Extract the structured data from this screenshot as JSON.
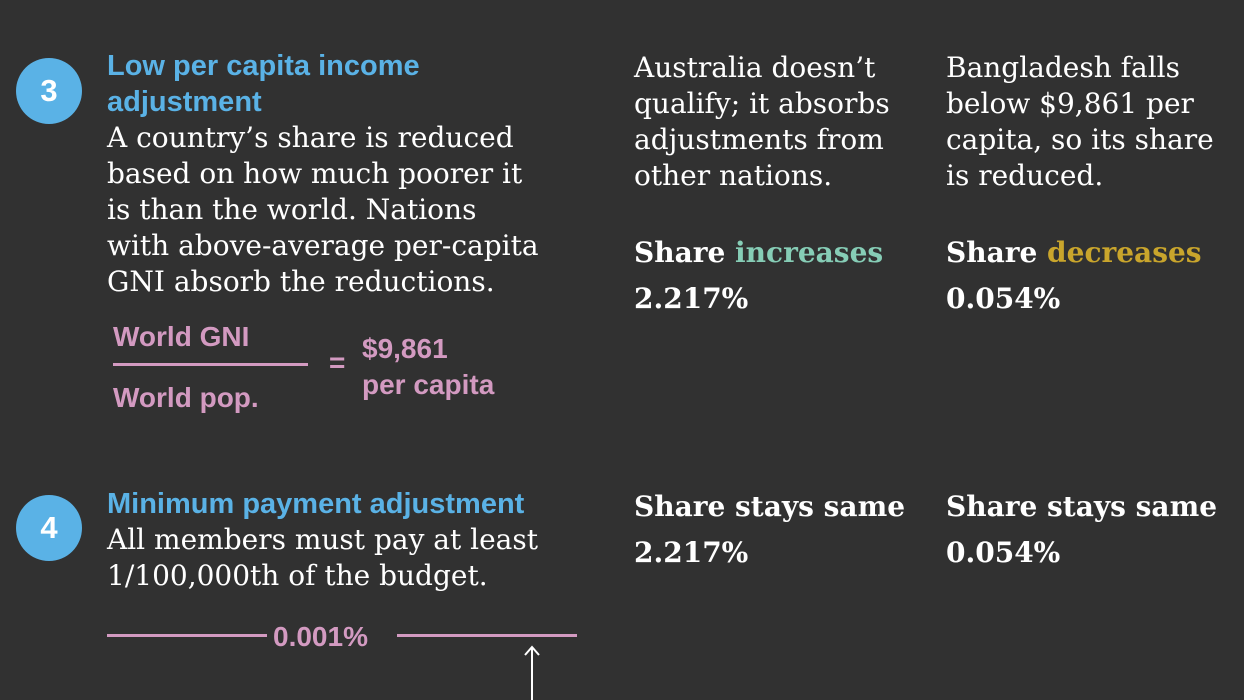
{
  "colors": {
    "background": "#313131",
    "accent_blue": "#5ab2e6",
    "formula_pink": "#d39ac1",
    "increase_teal": "#86cdb6",
    "decrease_gold": "#c9a52c"
  },
  "step3": {
    "number": "3",
    "title": "Low per capita income adjustment",
    "body": "A country’s share is reduced\nbased on how much poorer it\nis than the world. Nations\nwith above-average per-capita\nGNI absorb the reductions.",
    "formula": {
      "numerator": "World GNI",
      "denominator": "World pop.",
      "equals": "=",
      "result_line1": "$9,861",
      "result_line2": "per capita"
    },
    "australia": {
      "note": "Australia doesn’t\nqualify; it absorbs\nadjustments from\nother nations.",
      "share_prefix": "Share ",
      "share_word": "increases",
      "value": "2.217%"
    },
    "bangladesh": {
      "note": "Bangladesh falls\nbelow $9,861 per\ncapita, so its share\nis reduced.",
      "share_prefix": "Share ",
      "share_word": "decreases",
      "value": "0.054%"
    }
  },
  "step4": {
    "number": "4",
    "title": "Minimum payment adjustment",
    "body": "All members must pay at least\n1/100,000th of the budget.",
    "threshold_label": "0.001%",
    "australia": {
      "share_label": "Share stays same",
      "value": "2.217%"
    },
    "bangladesh": {
      "share_label": "Share stays same",
      "value": "0.054%"
    }
  }
}
